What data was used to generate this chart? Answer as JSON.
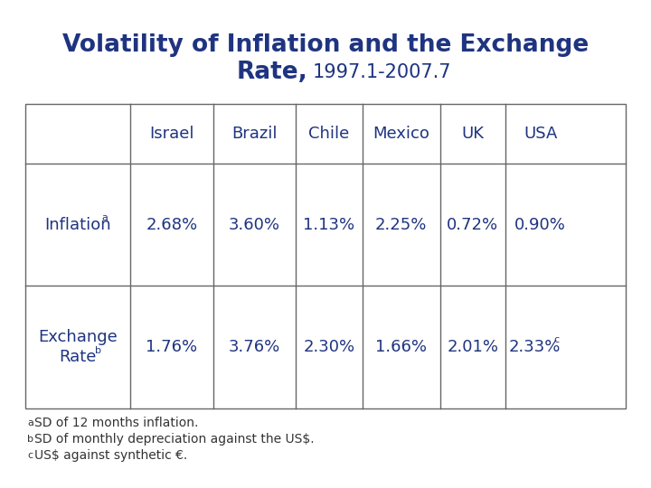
{
  "title_line1": "Volatility of Inflation and the Exchange",
  "title_line2": "Rate,",
  "title_subtitle": "1997.1-2007.7",
  "title_color": "#1F3480",
  "columns": [
    "",
    "Israel",
    "Brazil",
    "Chile",
    "Mexico",
    "UK",
    "USA"
  ],
  "rows": [
    {
      "label_plain": "Inflation",
      "label_super": "a",
      "values": [
        "2.68%",
        "3.60%",
        "1.13%",
        "2.25%",
        "0.72%",
        "0.90%"
      ],
      "last_super": ""
    },
    {
      "label_plain": "Exchange\nRate",
      "label_super": "b",
      "values": [
        "1.76%",
        "3.76%",
        "2.30%",
        "1.66%",
        "2.01%",
        "2.33%"
      ],
      "last_super": "c"
    }
  ],
  "footnotes": [
    "a SD of 12 months inflation.",
    "b SD of monthly depreciation against the US$.",
    "c US$ against synthetic €."
  ],
  "footnote_supers": [
    "a",
    "b",
    "c"
  ],
  "table_text_color": "#1F3480",
  "bg_color": "#FFFFFF",
  "border_color": "#666666"
}
